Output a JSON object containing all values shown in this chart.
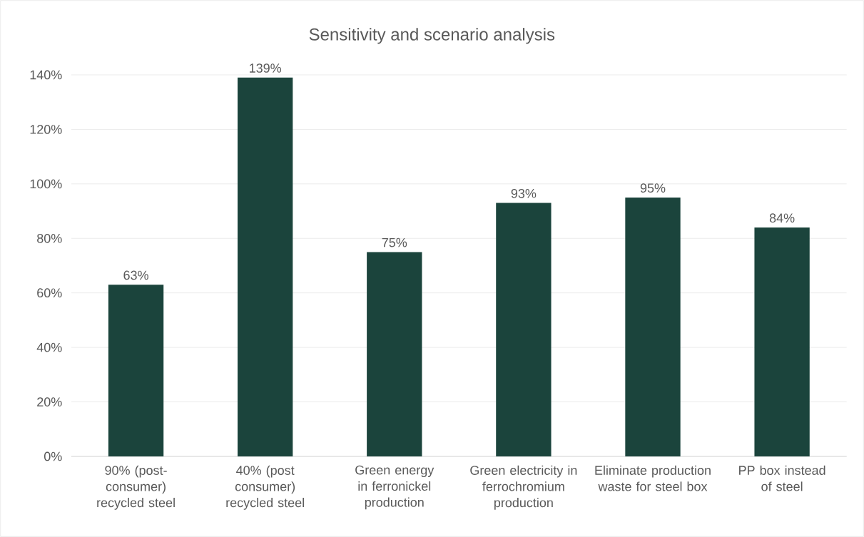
{
  "chart_data": {
    "type": "bar",
    "title": "Sensitivity and scenario analysis",
    "categories": [
      "90% (post-consumer) recycled steel",
      "40% (post consumer) recycled steel",
      "Green energy in ferronickel production",
      "Green electricity in ferrochromium production",
      "Eliminate production waste for steel box",
      "PP box instead of steel"
    ],
    "values": [
      63,
      139,
      75,
      93,
      95,
      84
    ],
    "value_labels": [
      "63%",
      "139%",
      "75%",
      "93%",
      "95%",
      "84%"
    ],
    "color": "#1b443c",
    "ylim": [
      0,
      140
    ],
    "yticks": [
      {
        "value": 0,
        "label": "0%"
      },
      {
        "value": 20,
        "label": "20%"
      },
      {
        "value": 40,
        "label": "40%"
      },
      {
        "value": 60,
        "label": "60%"
      },
      {
        "value": 80,
        "label": "80%"
      },
      {
        "value": 100,
        "label": "100%"
      },
      {
        "value": 120,
        "label": "120%"
      },
      {
        "value": 140,
        "label": "140%"
      }
    ],
    "grid": "y"
  }
}
